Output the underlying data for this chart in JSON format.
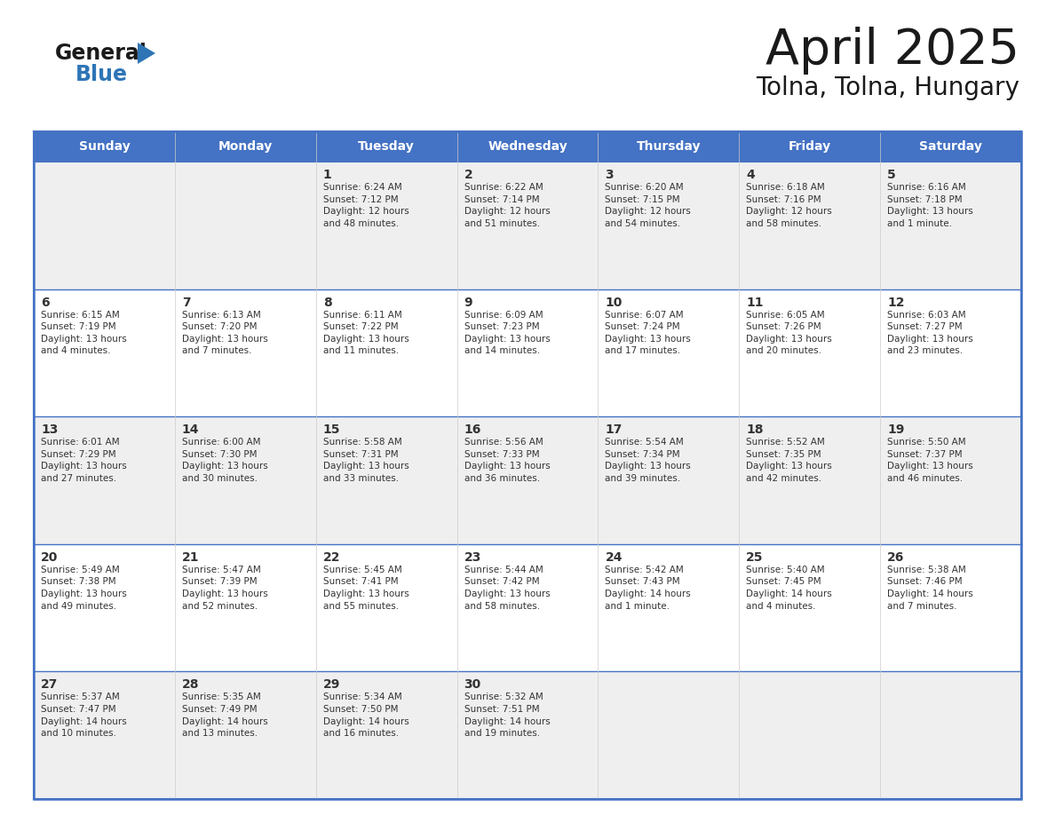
{
  "title": "April 2025",
  "subtitle": "Tolna, Tolna, Hungary",
  "days_of_week": [
    "Sunday",
    "Monday",
    "Tuesday",
    "Wednesday",
    "Thursday",
    "Friday",
    "Saturday"
  ],
  "header_bg": "#4472C4",
  "header_text_color": "#FFFFFF",
  "cell_bg_white": "#FFFFFF",
  "cell_bg_gray": "#EFEFEF",
  "border_color": "#4472C4",
  "row_line_color": "#4472C4",
  "col_line_color": "#CCCCCC",
  "title_color": "#1a1a1a",
  "subtitle_color": "#1a1a1a",
  "text_color": "#333333",
  "num_color": "#333333",
  "weeks": [
    [
      {
        "day": null,
        "info": ""
      },
      {
        "day": null,
        "info": ""
      },
      {
        "day": 1,
        "info": "Sunrise: 6:24 AM\nSunset: 7:12 PM\nDaylight: 12 hours\nand 48 minutes."
      },
      {
        "day": 2,
        "info": "Sunrise: 6:22 AM\nSunset: 7:14 PM\nDaylight: 12 hours\nand 51 minutes."
      },
      {
        "day": 3,
        "info": "Sunrise: 6:20 AM\nSunset: 7:15 PM\nDaylight: 12 hours\nand 54 minutes."
      },
      {
        "day": 4,
        "info": "Sunrise: 6:18 AM\nSunset: 7:16 PM\nDaylight: 12 hours\nand 58 minutes."
      },
      {
        "day": 5,
        "info": "Sunrise: 6:16 AM\nSunset: 7:18 PM\nDaylight: 13 hours\nand 1 minute."
      }
    ],
    [
      {
        "day": 6,
        "info": "Sunrise: 6:15 AM\nSunset: 7:19 PM\nDaylight: 13 hours\nand 4 minutes."
      },
      {
        "day": 7,
        "info": "Sunrise: 6:13 AM\nSunset: 7:20 PM\nDaylight: 13 hours\nand 7 minutes."
      },
      {
        "day": 8,
        "info": "Sunrise: 6:11 AM\nSunset: 7:22 PM\nDaylight: 13 hours\nand 11 minutes."
      },
      {
        "day": 9,
        "info": "Sunrise: 6:09 AM\nSunset: 7:23 PM\nDaylight: 13 hours\nand 14 minutes."
      },
      {
        "day": 10,
        "info": "Sunrise: 6:07 AM\nSunset: 7:24 PM\nDaylight: 13 hours\nand 17 minutes."
      },
      {
        "day": 11,
        "info": "Sunrise: 6:05 AM\nSunset: 7:26 PM\nDaylight: 13 hours\nand 20 minutes."
      },
      {
        "day": 12,
        "info": "Sunrise: 6:03 AM\nSunset: 7:27 PM\nDaylight: 13 hours\nand 23 minutes."
      }
    ],
    [
      {
        "day": 13,
        "info": "Sunrise: 6:01 AM\nSunset: 7:29 PM\nDaylight: 13 hours\nand 27 minutes."
      },
      {
        "day": 14,
        "info": "Sunrise: 6:00 AM\nSunset: 7:30 PM\nDaylight: 13 hours\nand 30 minutes."
      },
      {
        "day": 15,
        "info": "Sunrise: 5:58 AM\nSunset: 7:31 PM\nDaylight: 13 hours\nand 33 minutes."
      },
      {
        "day": 16,
        "info": "Sunrise: 5:56 AM\nSunset: 7:33 PM\nDaylight: 13 hours\nand 36 minutes."
      },
      {
        "day": 17,
        "info": "Sunrise: 5:54 AM\nSunset: 7:34 PM\nDaylight: 13 hours\nand 39 minutes."
      },
      {
        "day": 18,
        "info": "Sunrise: 5:52 AM\nSunset: 7:35 PM\nDaylight: 13 hours\nand 42 minutes."
      },
      {
        "day": 19,
        "info": "Sunrise: 5:50 AM\nSunset: 7:37 PM\nDaylight: 13 hours\nand 46 minutes."
      }
    ],
    [
      {
        "day": 20,
        "info": "Sunrise: 5:49 AM\nSunset: 7:38 PM\nDaylight: 13 hours\nand 49 minutes."
      },
      {
        "day": 21,
        "info": "Sunrise: 5:47 AM\nSunset: 7:39 PM\nDaylight: 13 hours\nand 52 minutes."
      },
      {
        "day": 22,
        "info": "Sunrise: 5:45 AM\nSunset: 7:41 PM\nDaylight: 13 hours\nand 55 minutes."
      },
      {
        "day": 23,
        "info": "Sunrise: 5:44 AM\nSunset: 7:42 PM\nDaylight: 13 hours\nand 58 minutes."
      },
      {
        "day": 24,
        "info": "Sunrise: 5:42 AM\nSunset: 7:43 PM\nDaylight: 14 hours\nand 1 minute."
      },
      {
        "day": 25,
        "info": "Sunrise: 5:40 AM\nSunset: 7:45 PM\nDaylight: 14 hours\nand 4 minutes."
      },
      {
        "day": 26,
        "info": "Sunrise: 5:38 AM\nSunset: 7:46 PM\nDaylight: 14 hours\nand 7 minutes."
      }
    ],
    [
      {
        "day": 27,
        "info": "Sunrise: 5:37 AM\nSunset: 7:47 PM\nDaylight: 14 hours\nand 10 minutes."
      },
      {
        "day": 28,
        "info": "Sunrise: 5:35 AM\nSunset: 7:49 PM\nDaylight: 14 hours\nand 13 minutes."
      },
      {
        "day": 29,
        "info": "Sunrise: 5:34 AM\nSunset: 7:50 PM\nDaylight: 14 hours\nand 16 minutes."
      },
      {
        "day": 30,
        "info": "Sunrise: 5:32 AM\nSunset: 7:51 PM\nDaylight: 14 hours\nand 19 minutes."
      },
      {
        "day": null,
        "info": ""
      },
      {
        "day": null,
        "info": ""
      },
      {
        "day": null,
        "info": ""
      }
    ]
  ],
  "logo_general_color": "#1a1a1a",
  "logo_blue_color": "#2E75B6",
  "logo_triangle_color": "#2E75B6"
}
